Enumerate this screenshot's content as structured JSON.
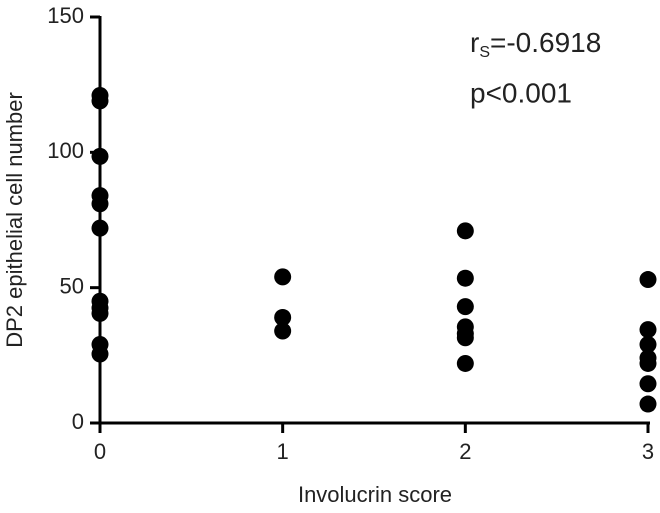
{
  "chart_data": {
    "type": "scatter",
    "x_label": "Involucrin score",
    "y_label": "DP2 epithelial cell number",
    "annotation_r": {
      "symbol": "r",
      "subscript": "S",
      "value": "=-0.6918"
    },
    "annotation_p": "p<0.001",
    "xlim": [
      0,
      3
    ],
    "ylim": [
      0,
      150
    ],
    "xticks": [
      0,
      1,
      2,
      3
    ],
    "yticks": [
      0,
      50,
      100,
      150
    ],
    "color": "#000000",
    "x": [
      0,
      0,
      0,
      0,
      0,
      0,
      0,
      0,
      0,
      0,
      0,
      1,
      1,
      1,
      2,
      2,
      2,
      2,
      2,
      2,
      2,
      3,
      3,
      3,
      3,
      3,
      3,
      3
    ],
    "values": [
      121,
      119,
      98.5,
      84,
      81,
      72,
      45,
      42.5,
      40.5,
      29,
      25.5,
      54,
      39,
      34,
      71,
      53.5,
      43,
      35.5,
      33,
      31.5,
      22,
      53,
      34.5,
      29,
      24,
      22,
      14.5,
      7
    ]
  }
}
